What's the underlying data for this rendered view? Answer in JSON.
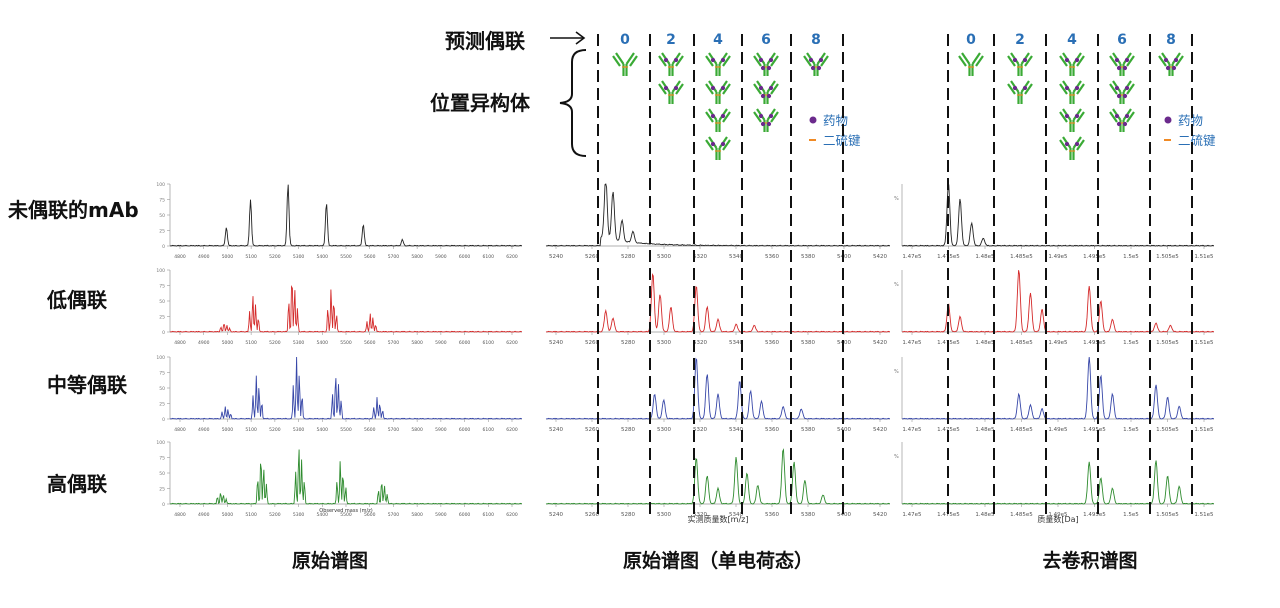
{
  "annotations": {
    "predicted_conjugation": "预测偶联",
    "positional_isomers": "位置异构体"
  },
  "rows": [
    "未偶联的mAb",
    "低偶联",
    "中等偶联",
    "高偶联"
  ],
  "panel_titles": [
    "原始谱图",
    "原始谱图（单电荷态）",
    "去卷积谱图"
  ],
  "dar_numbers": [
    "0",
    "2",
    "4",
    "6",
    "8"
  ],
  "legend": {
    "drug": "药物",
    "disulfide": "二硫键"
  },
  "colors": {
    "row_colors": [
      "#222222",
      "#d42a2a",
      "#3747a8",
      "#2e8b2e"
    ],
    "number_blue": "#2a6fb5",
    "antibody_green": "#3aaa35",
    "drug_purple": "#6b2a8c",
    "disulfide_orange": "#f08a24"
  },
  "chart_data": [
    {
      "type": "line",
      "title": "原始谱图",
      "xlabel": "Observed mass (m/z)",
      "x_ticks": [
        "4800",
        "4900",
        "5000",
        "5100",
        "5200",
        "5300",
        "5400",
        "5500",
        "5600",
        "5700",
        "5800",
        "5900",
        "6000",
        "6100",
        "6200"
      ],
      "y_ticks": [
        "0",
        "25",
        "50",
        "75",
        "100"
      ],
      "series": [
        {
          "name": "未偶联的mAb",
          "peaks": [
            [
              4995,
              30
            ],
            [
              5100,
              75
            ],
            [
              5263,
              100
            ],
            [
              5430,
              70
            ],
            [
              5590,
              35
            ],
            [
              5760,
              10
            ]
          ]
        },
        {
          "name": "低偶联",
          "peaks": [
            [
              4985,
              15
            ],
            [
              5110,
              60
            ],
            [
              5280,
              95
            ],
            [
              5450,
              70
            ],
            [
              5620,
              30
            ]
          ]
        },
        {
          "name": "中等偶联",
          "peaks": [
            [
              4990,
              20
            ],
            [
              5125,
              70
            ],
            [
              5300,
              100
            ],
            [
              5470,
              75
            ],
            [
              5650,
              35
            ]
          ]
        },
        {
          "name": "高偶联",
          "peaks": [
            [
              4970,
              20
            ],
            [
              5145,
              80
            ],
            [
              5310,
              95
            ],
            [
              5490,
              70
            ],
            [
              5670,
              40
            ]
          ]
        }
      ]
    },
    {
      "type": "line",
      "title": "原始谱图（单电荷态）",
      "xlabel": "实测质量数[m/z]",
      "x_ticks": [
        "5240",
        "5260",
        "5280",
        "5300",
        "5320",
        "5340",
        "5360",
        "5380",
        "5400",
        "5420"
      ],
      "y_ticks": [],
      "series": [
        {
          "name": "未偶联的mAb",
          "peaks": [
            [
              5268,
              100
            ],
            [
              5272,
              78
            ],
            [
              5277,
              34
            ],
            [
              5283,
              18
            ]
          ]
        },
        {
          "name": "低偶联",
          "peaks": [
            [
              5268,
              34
            ],
            [
              5272,
              22
            ],
            [
              5294,
              95
            ],
            [
              5298,
              60
            ],
            [
              5304,
              40
            ],
            [
              5318,
              75
            ],
            [
              5324,
              40
            ],
            [
              5330,
              20
            ],
            [
              5340,
              12
            ],
            [
              5350,
              10
            ]
          ]
        },
        {
          "name": "中等偶联",
          "peaks": [
            [
              5295,
              40
            ],
            [
              5300,
              30
            ],
            [
              5318,
              100
            ],
            [
              5324,
              72
            ],
            [
              5330,
              40
            ],
            [
              5342,
              62
            ],
            [
              5348,
              45
            ],
            [
              5354,
              28
            ],
            [
              5366,
              20
            ],
            [
              5376,
              16
            ]
          ]
        },
        {
          "name": "高偶联",
          "peaks": [
            [
              5318,
              75
            ],
            [
              5324,
              45
            ],
            [
              5330,
              25
            ],
            [
              5340,
              75
            ],
            [
              5346,
              50
            ],
            [
              5352,
              30
            ],
            [
              5366,
              90
            ],
            [
              5372,
              68
            ],
            [
              5378,
              38
            ],
            [
              5388,
              14
            ]
          ]
        }
      ]
    },
    {
      "type": "line",
      "title": "去卷积谱图",
      "xlabel": "质量数[Da]",
      "x_ticks": [
        "1.47e5",
        "1.475e5",
        "1.48e5",
        "1.485e5",
        "1.49e5",
        "1.495e5",
        "1.5e5",
        "1.505e5",
        "1.51e5"
      ],
      "y_ticks": [
        "%"
      ],
      "series": [
        {
          "name": "未偶联的mAb",
          "peaks": [
            [
              147540,
              100
            ],
            [
              147700,
              75
            ],
            [
              147860,
              36
            ],
            [
              148020,
              12
            ]
          ]
        },
        {
          "name": "低偶联",
          "peaks": [
            [
              147540,
              45
            ],
            [
              147700,
              24
            ],
            [
              148510,
              100
            ],
            [
              148670,
              62
            ],
            [
              148830,
              36
            ],
            [
              149480,
              74
            ],
            [
              149640,
              50
            ],
            [
              149800,
              20
            ],
            [
              150400,
              14
            ],
            [
              150600,
              10
            ]
          ]
        },
        {
          "name": "中等偶联",
          "peaks": [
            [
              148510,
              40
            ],
            [
              148670,
              22
            ],
            [
              148830,
              16
            ],
            [
              149480,
              100
            ],
            [
              149640,
              70
            ],
            [
              149800,
              40
            ],
            [
              150400,
              55
            ],
            [
              150560,
              35
            ],
            [
              150720,
              20
            ],
            [
              151300,
              20
            ],
            [
              151460,
              12
            ]
          ]
        },
        {
          "name": "高偶联",
          "peaks": [
            [
              149480,
              68
            ],
            [
              149640,
              42
            ],
            [
              149800,
              25
            ],
            [
              150400,
              70
            ],
            [
              150560,
              45
            ],
            [
              150720,
              28
            ],
            [
              151300,
              96
            ],
            [
              151460,
              68
            ],
            [
              151620,
              32
            ]
          ]
        }
      ]
    }
  ]
}
